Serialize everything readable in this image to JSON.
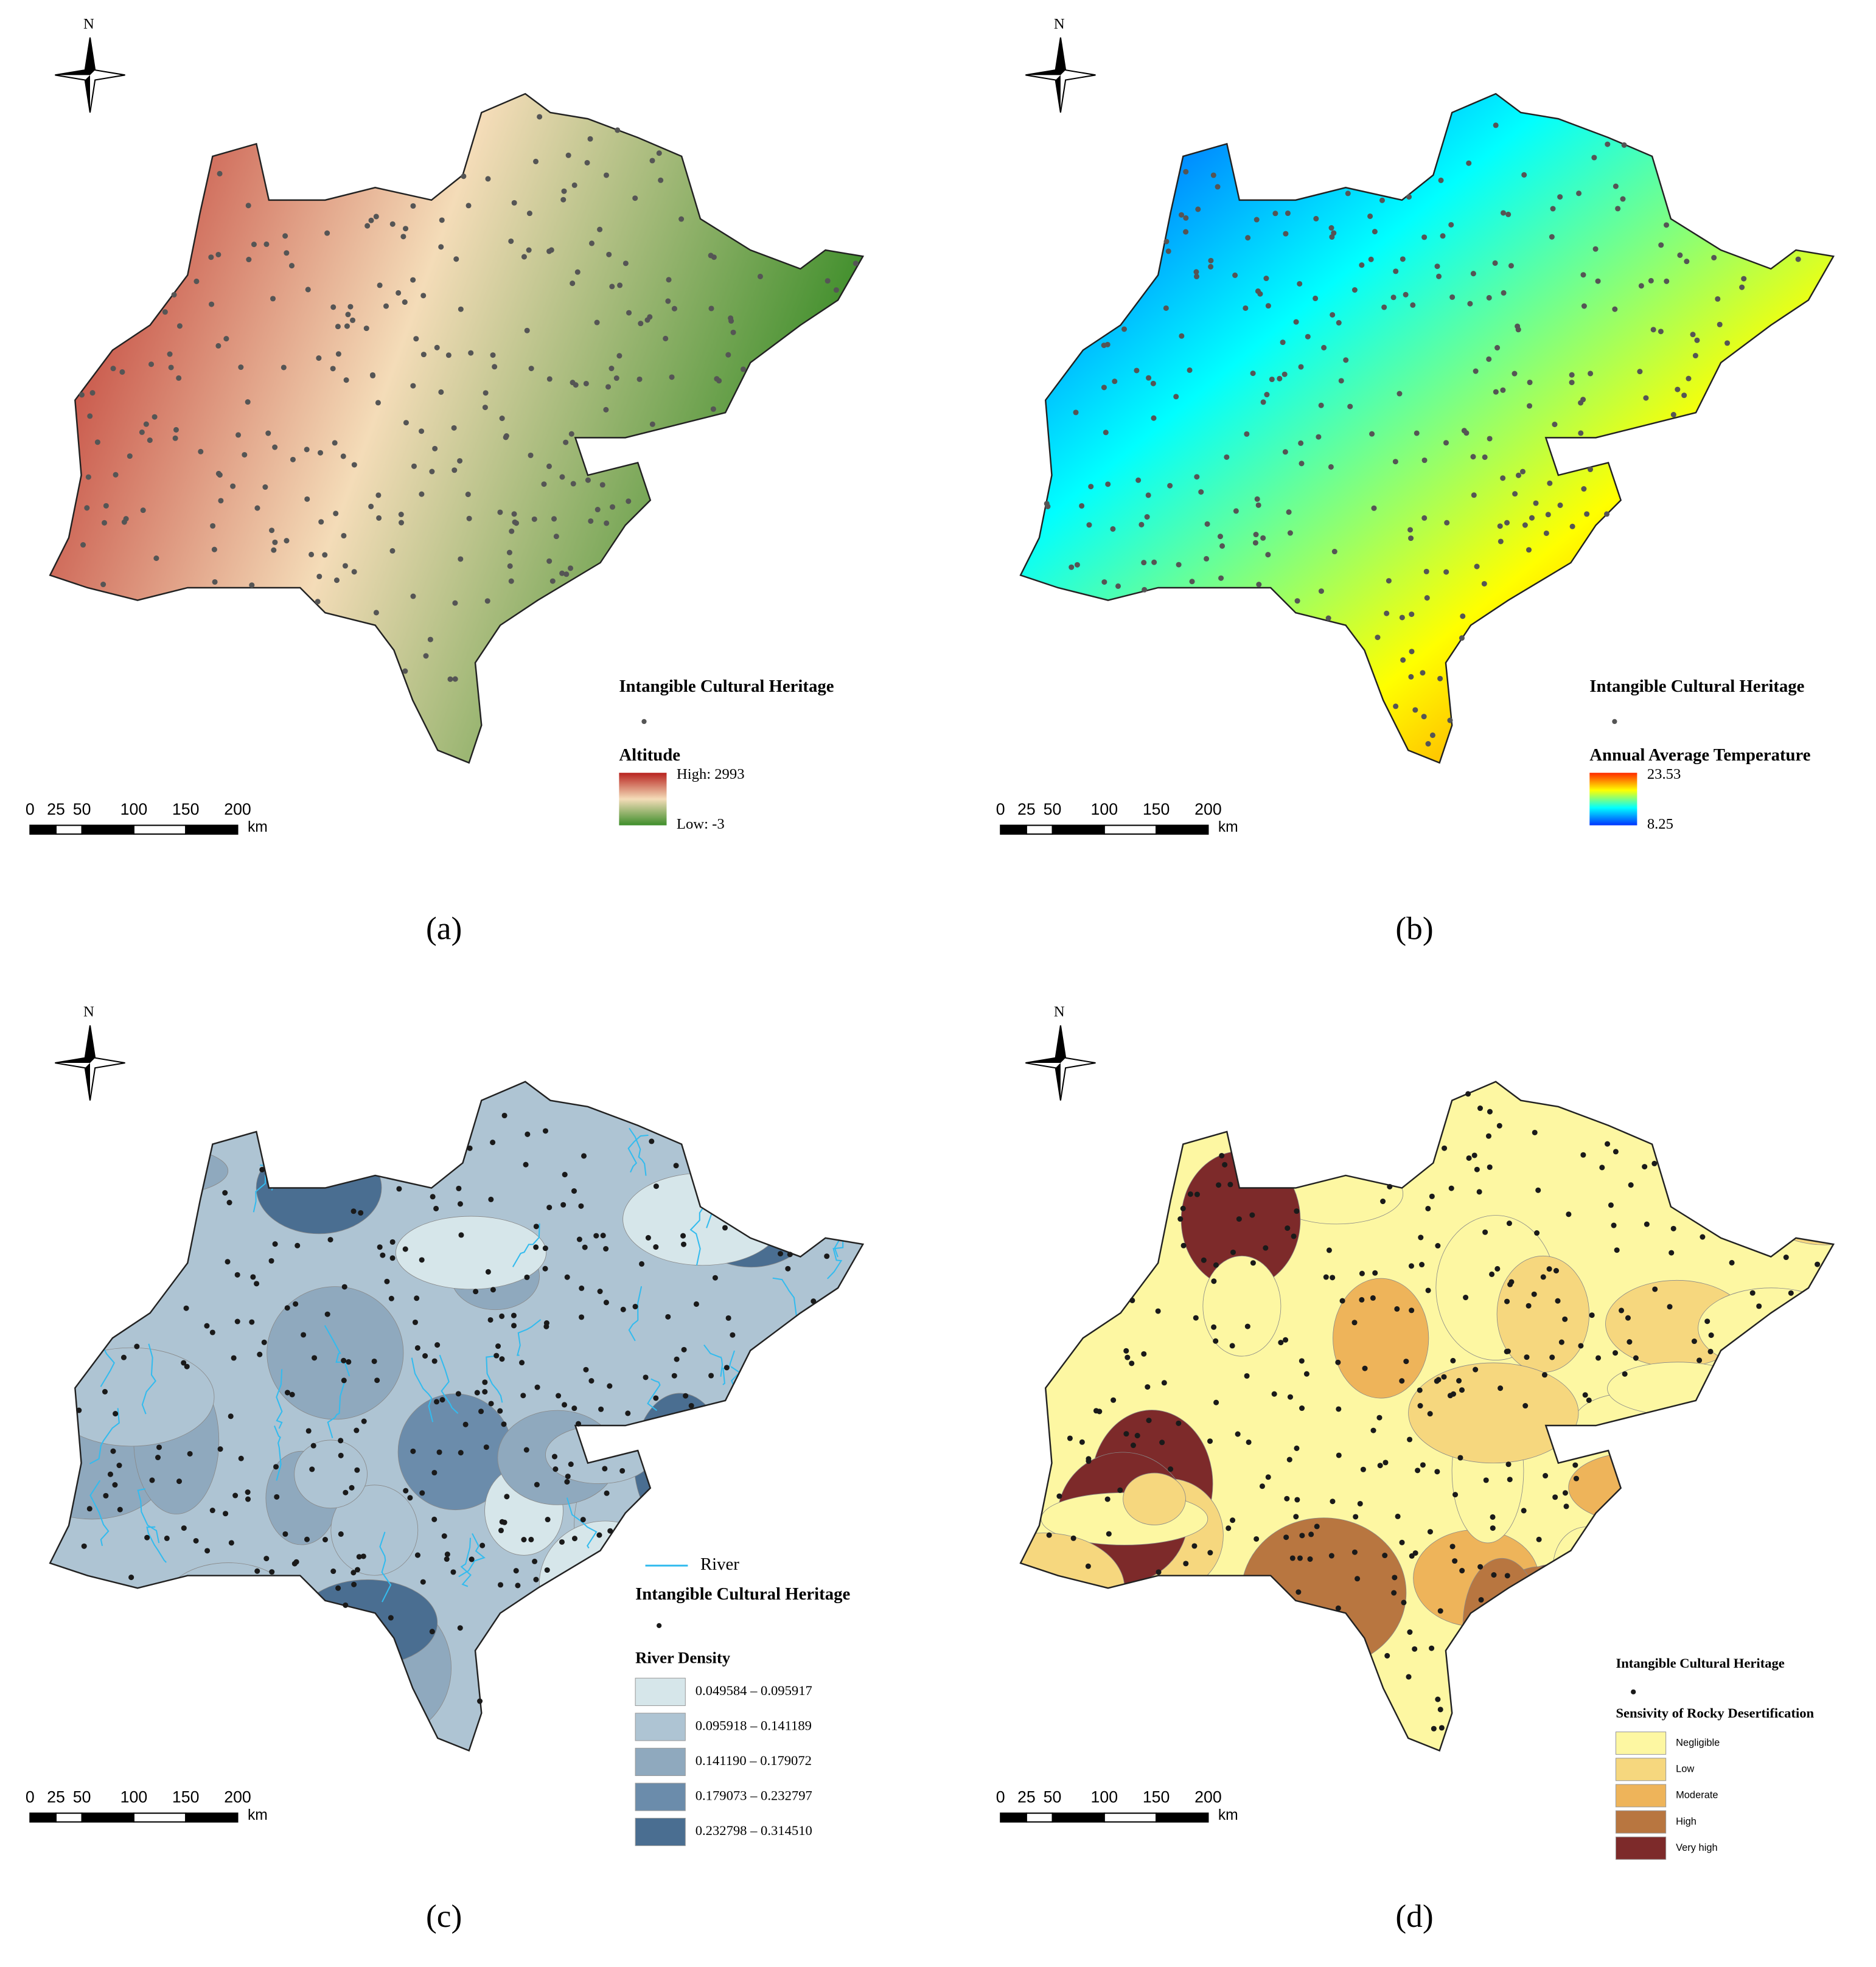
{
  "north": "N",
  "heritage_label": "Intangible Cultural Heritage",
  "scale": {
    "ticks": [
      0,
      25,
      50,
      100,
      150,
      200
    ],
    "unit": "km"
  },
  "panels": [
    {
      "caption": "(a)",
      "legend_title": "Altitude",
      "ramp": [
        "#b8231f",
        "#f4dcb8",
        "#3e8e2a"
      ],
      "high_label": "High: 2993",
      "low_label": "Low: -3"
    },
    {
      "caption": "(b)",
      "legend_title": "Annual Average Temperature",
      "ramp": [
        "#ff2a00",
        "#ffff00",
        "#00ffff",
        "#0033ff"
      ],
      "high_label": "23.53",
      "low_label": "8.25"
    },
    {
      "caption": "(c)",
      "river_label": "River",
      "river_color": "#33bbee",
      "legend_title": "River Density",
      "classes": [
        {
          "label": "0.049584 – 0.095917",
          "color": "#d6e6ea"
        },
        {
          "label": "0.095918 – 0.141189",
          "color": "#aec4d3"
        },
        {
          "label": "0.141190 – 0.179072",
          "color": "#8fa9be"
        },
        {
          "label": "0.179073 – 0.232797",
          "color": "#6b8cab"
        },
        {
          "label": "0.232798 – 0.314510",
          "color": "#4a6e91"
        }
      ]
    },
    {
      "caption": "(d)",
      "legend_title": "Sensivity of Rocky Desertification",
      "classes": [
        {
          "label": "Negligible",
          "color": "#fdf7a2"
        },
        {
          "label": "Low",
          "color": "#f6d77e"
        },
        {
          "label": "Moderate",
          "color": "#eeb45a"
        },
        {
          "label": "High",
          "color": "#b87640"
        },
        {
          "label": "Very high",
          "color": "#7d2a2a"
        }
      ]
    }
  ]
}
